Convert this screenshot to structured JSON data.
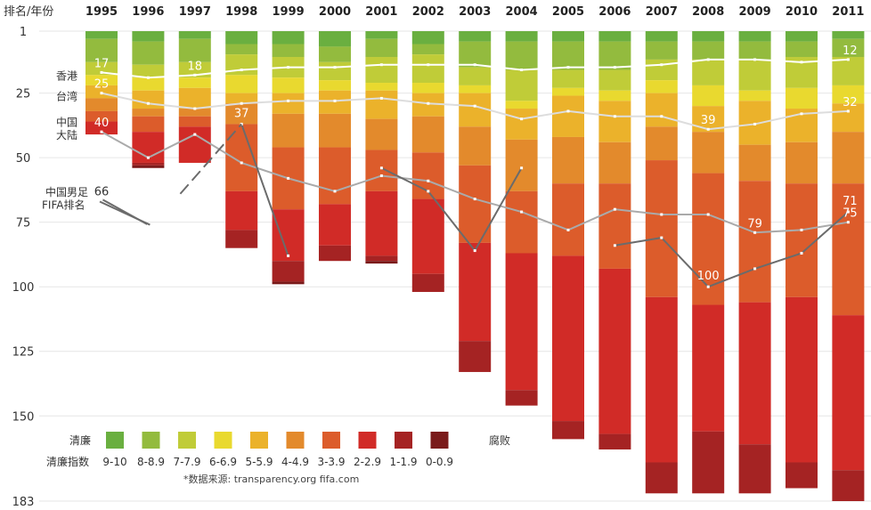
{
  "chart_data": {
    "type": "bar",
    "title": "",
    "ylabel": "排名/年份",
    "ylim": [
      1,
      183
    ],
    "y_ticks": [
      1,
      25,
      50,
      75,
      100,
      125,
      150,
      183
    ],
    "categories": [
      "1995",
      "1996",
      "1997",
      "1998",
      "1999",
      "2000",
      "2001",
      "2002",
      "2003",
      "2004",
      "2005",
      "2006",
      "2007",
      "2008",
      "2009",
      "2010",
      "2011"
    ],
    "total_countries": [
      41,
      54,
      52,
      85,
      99,
      90,
      91,
      102,
      133,
      146,
      159,
      163,
      180,
      180,
      180,
      178,
      183
    ],
    "bands": [
      {
        "name": "9-10",
        "color": "#6aaf40",
        "bounds": [
          4,
          5,
          4,
          6,
          6,
          7,
          4,
          6,
          5,
          5,
          5,
          5,
          5,
          5,
          5,
          5,
          4
        ]
      },
      {
        "name": "8-8.9",
        "color": "#93bb3e",
        "bounds": [
          13,
          14,
          13,
          10,
          11,
          13,
          11,
          10,
          15,
          16,
          16,
          16,
          12,
          12,
          12,
          11,
          11
        ]
      },
      {
        "name": "7-7.9",
        "color": "#c0cc38",
        "bounds": [
          18,
          19,
          19,
          18,
          19,
          20,
          21,
          21,
          22,
          28,
          23,
          24,
          20,
          22,
          24,
          23,
          22
        ]
      },
      {
        "name": "6-6.9",
        "color": "#e9d92f",
        "bounds": [
          22,
          24,
          23,
          25,
          25,
          24,
          24,
          25,
          25,
          31,
          26,
          28,
          25,
          30,
          28,
          31,
          29
        ]
      },
      {
        "name": "5-5.9",
        "color": "#ebb22b",
        "bounds": [
          27,
          31,
          31,
          29,
          33,
          33,
          35,
          34,
          38,
          43,
          42,
          44,
          38,
          40,
          45,
          44,
          40
        ]
      },
      {
        "name": "4-4.9",
        "color": "#e38a2c",
        "bounds": [
          32,
          34,
          34,
          37,
          46,
          46,
          47,
          48,
          53,
          63,
          60,
          60,
          51,
          56,
          59,
          60,
          60
        ]
      },
      {
        "name": "3-3.9",
        "color": "#dc5c2b",
        "bounds": [
          36,
          40,
          38,
          63,
          70,
          68,
          63,
          66,
          83,
          87,
          88,
          93,
          104,
          107,
          106,
          104,
          111
        ]
      },
      {
        "name": "2-2.9",
        "color": "#d12b27",
        "bounds": [
          41,
          52,
          52,
          78,
          90,
          84,
          88,
          95,
          121,
          140,
          152,
          157,
          168,
          156,
          161,
          168,
          171
        ]
      },
      {
        "name": "1-1.9",
        "color": "#a52323",
        "bounds": [
          41,
          53,
          52,
          85,
          98,
          90,
          90,
          102,
          133,
          146,
          159,
          163,
          180,
          180,
          180,
          178,
          183
        ]
      },
      {
        "name": "0-0.9",
        "color": "#7a1a1a",
        "bounds": [
          41,
          54,
          52,
          85,
          99,
          90,
          91,
          102,
          133,
          146,
          159,
          163,
          180,
          180,
          180,
          178,
          183
        ]
      }
    ],
    "series": [
      {
        "name": "香港",
        "color": "#ffffff",
        "values": [
          17,
          19,
          18,
          16,
          15,
          15,
          14,
          14,
          14,
          16,
          15,
          15,
          14,
          12,
          12,
          13,
          12
        ]
      },
      {
        "name": "台湾",
        "color": "#dddddd",
        "values": [
          25,
          29,
          31,
          29,
          28,
          28,
          27,
          29,
          30,
          35,
          32,
          34,
          34,
          39,
          37,
          33,
          32
        ]
      },
      {
        "name": "中国大陆",
        "color": "#aaaaaa",
        "values": [
          40,
          50,
          41,
          52,
          58,
          63,
          57,
          59,
          66,
          71,
          78,
          70,
          72,
          72,
          79,
          78,
          75
        ]
      },
      {
        "name": "中国男足FIFA排名",
        "color": "#6b6b6b",
        "values": [
          66,
          76,
          null,
          37,
          88,
          null,
          54,
          63,
          86,
          54,
          null,
          84,
          81,
          100,
          93,
          87,
          71
        ]
      }
    ],
    "series_labels": {
      "hk": "香港",
      "tw": "台湾",
      "cn_line1": "中国",
      "cn_line2": "大陆",
      "fifa_line1": "中国男足",
      "fifa_line2": "FIFA排名"
    },
    "annotations": [
      {
        "series": 0,
        "index": 0,
        "text": "17"
      },
      {
        "series": 0,
        "index": 2,
        "text": "18"
      },
      {
        "series": 0,
        "index": 16,
        "text": "12"
      },
      {
        "series": 1,
        "index": 0,
        "text": "25"
      },
      {
        "series": 1,
        "index": 13,
        "text": "39"
      },
      {
        "series": 1,
        "index": 16,
        "text": "32"
      },
      {
        "series": 2,
        "index": 0,
        "text": "40"
      },
      {
        "series": 2,
        "index": 14,
        "text": "79"
      },
      {
        "series": 2,
        "index": 16,
        "text": "75"
      },
      {
        "series": 3,
        "index": 0,
        "text": "66"
      },
      {
        "series": 3,
        "index": 3,
        "text": "37"
      },
      {
        "series": 3,
        "index": 13,
        "text": "100"
      },
      {
        "series": 3,
        "index": 16,
        "text": "71"
      }
    ],
    "legend": {
      "clean_label": "清廉",
      "corrupt_label": "腐败",
      "index_label": "清廉指数"
    },
    "source": "*数据来源: transparency.org fifa.com",
    "clean_color": "#6aaf40",
    "corrupt_color": "#a52323"
  }
}
